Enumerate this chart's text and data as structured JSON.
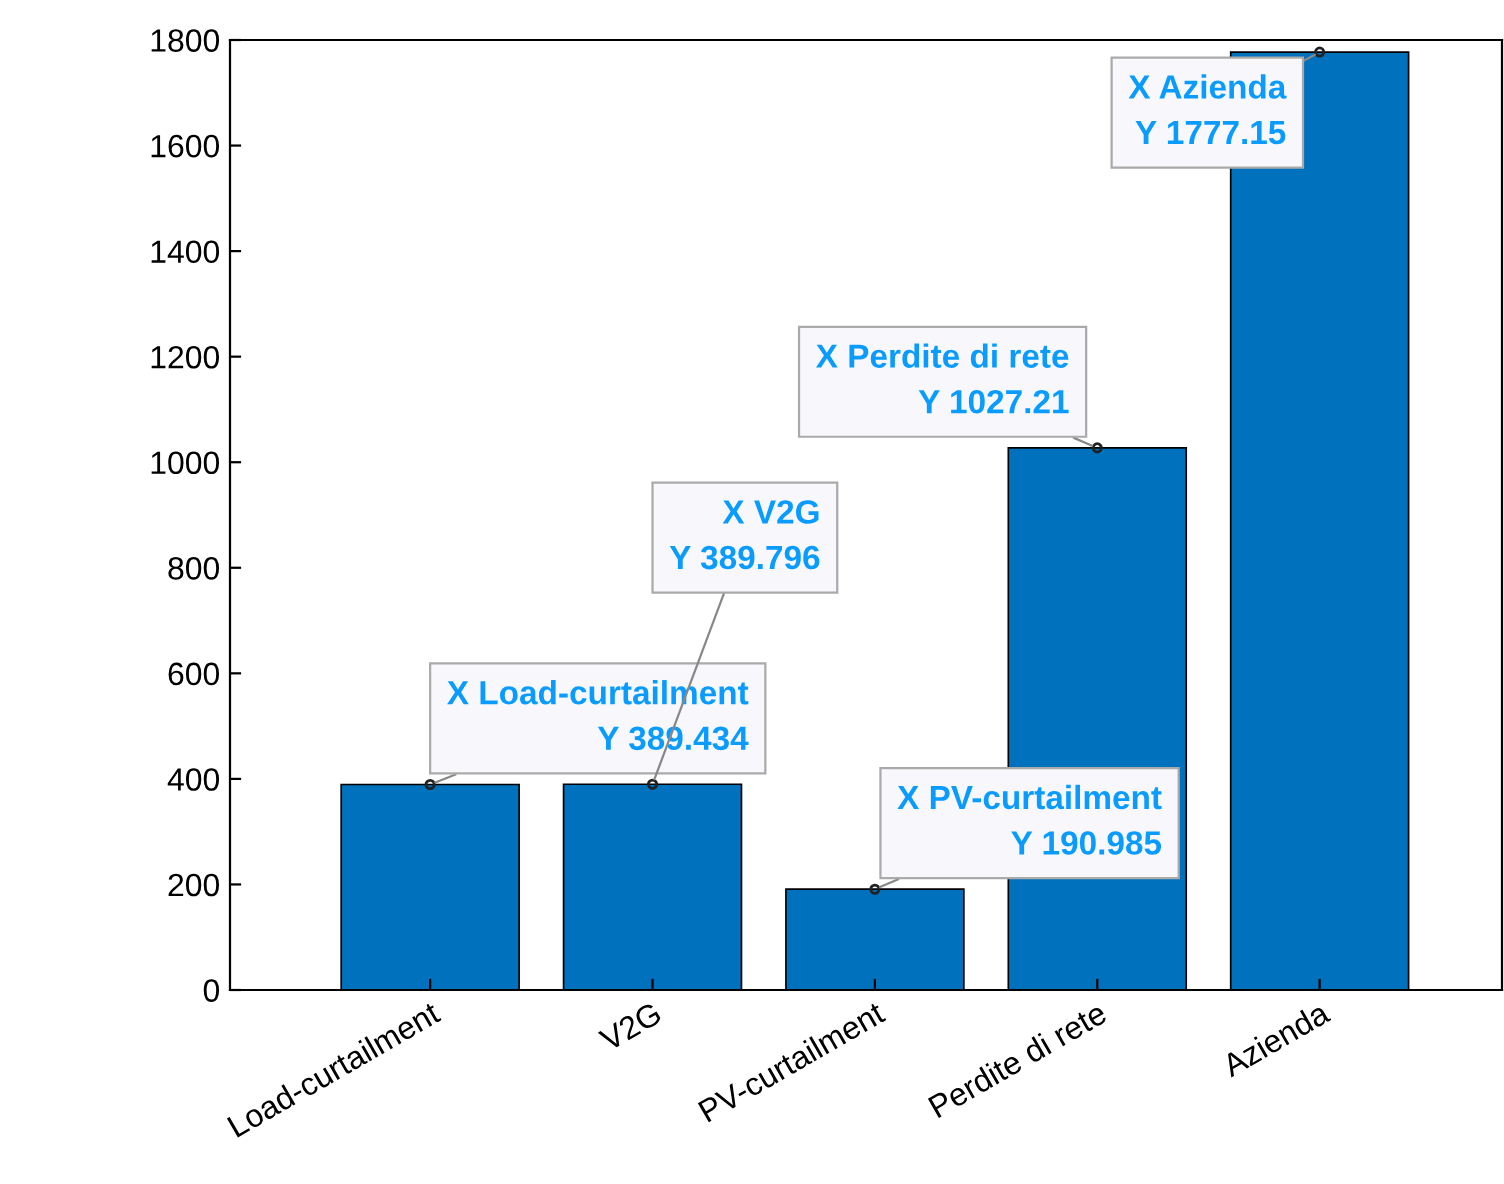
{
  "chart_data": {
    "type": "bar",
    "categories": [
      "Load-curtailment",
      "V2G",
      "PV-curtailment",
      "Perdite di rete",
      "Azienda"
    ],
    "values": [
      389.434,
      389.796,
      190.985,
      1027.21,
      1777.15
    ],
    "color": "#0072bd",
    "ylim": [
      0,
      1800
    ],
    "yticks": [
      0,
      200,
      400,
      600,
      800,
      1000,
      1200,
      1400,
      1600,
      1800
    ],
    "grid": false,
    "legend": false,
    "annotations": [
      {
        "text": "X Load-curtailment\nY 389.434",
        "x": "Load-curtailment",
        "y": 389.434
      },
      {
        "text": "X V2G\nY 389.796",
        "x": "V2G",
        "y": 389.796
      },
      {
        "text": "X PV-curtailment\nY 190.985",
        "x": "PV-curtailment",
        "y": 190.985
      },
      {
        "text": "X Perdite di rete\nY 1027.21",
        "x": "Perdite di rete",
        "y": 1027.21
      },
      {
        "text": "X Azienda\nY 1777.15",
        "x": "Azienda",
        "y": 1777.15
      }
    ]
  }
}
